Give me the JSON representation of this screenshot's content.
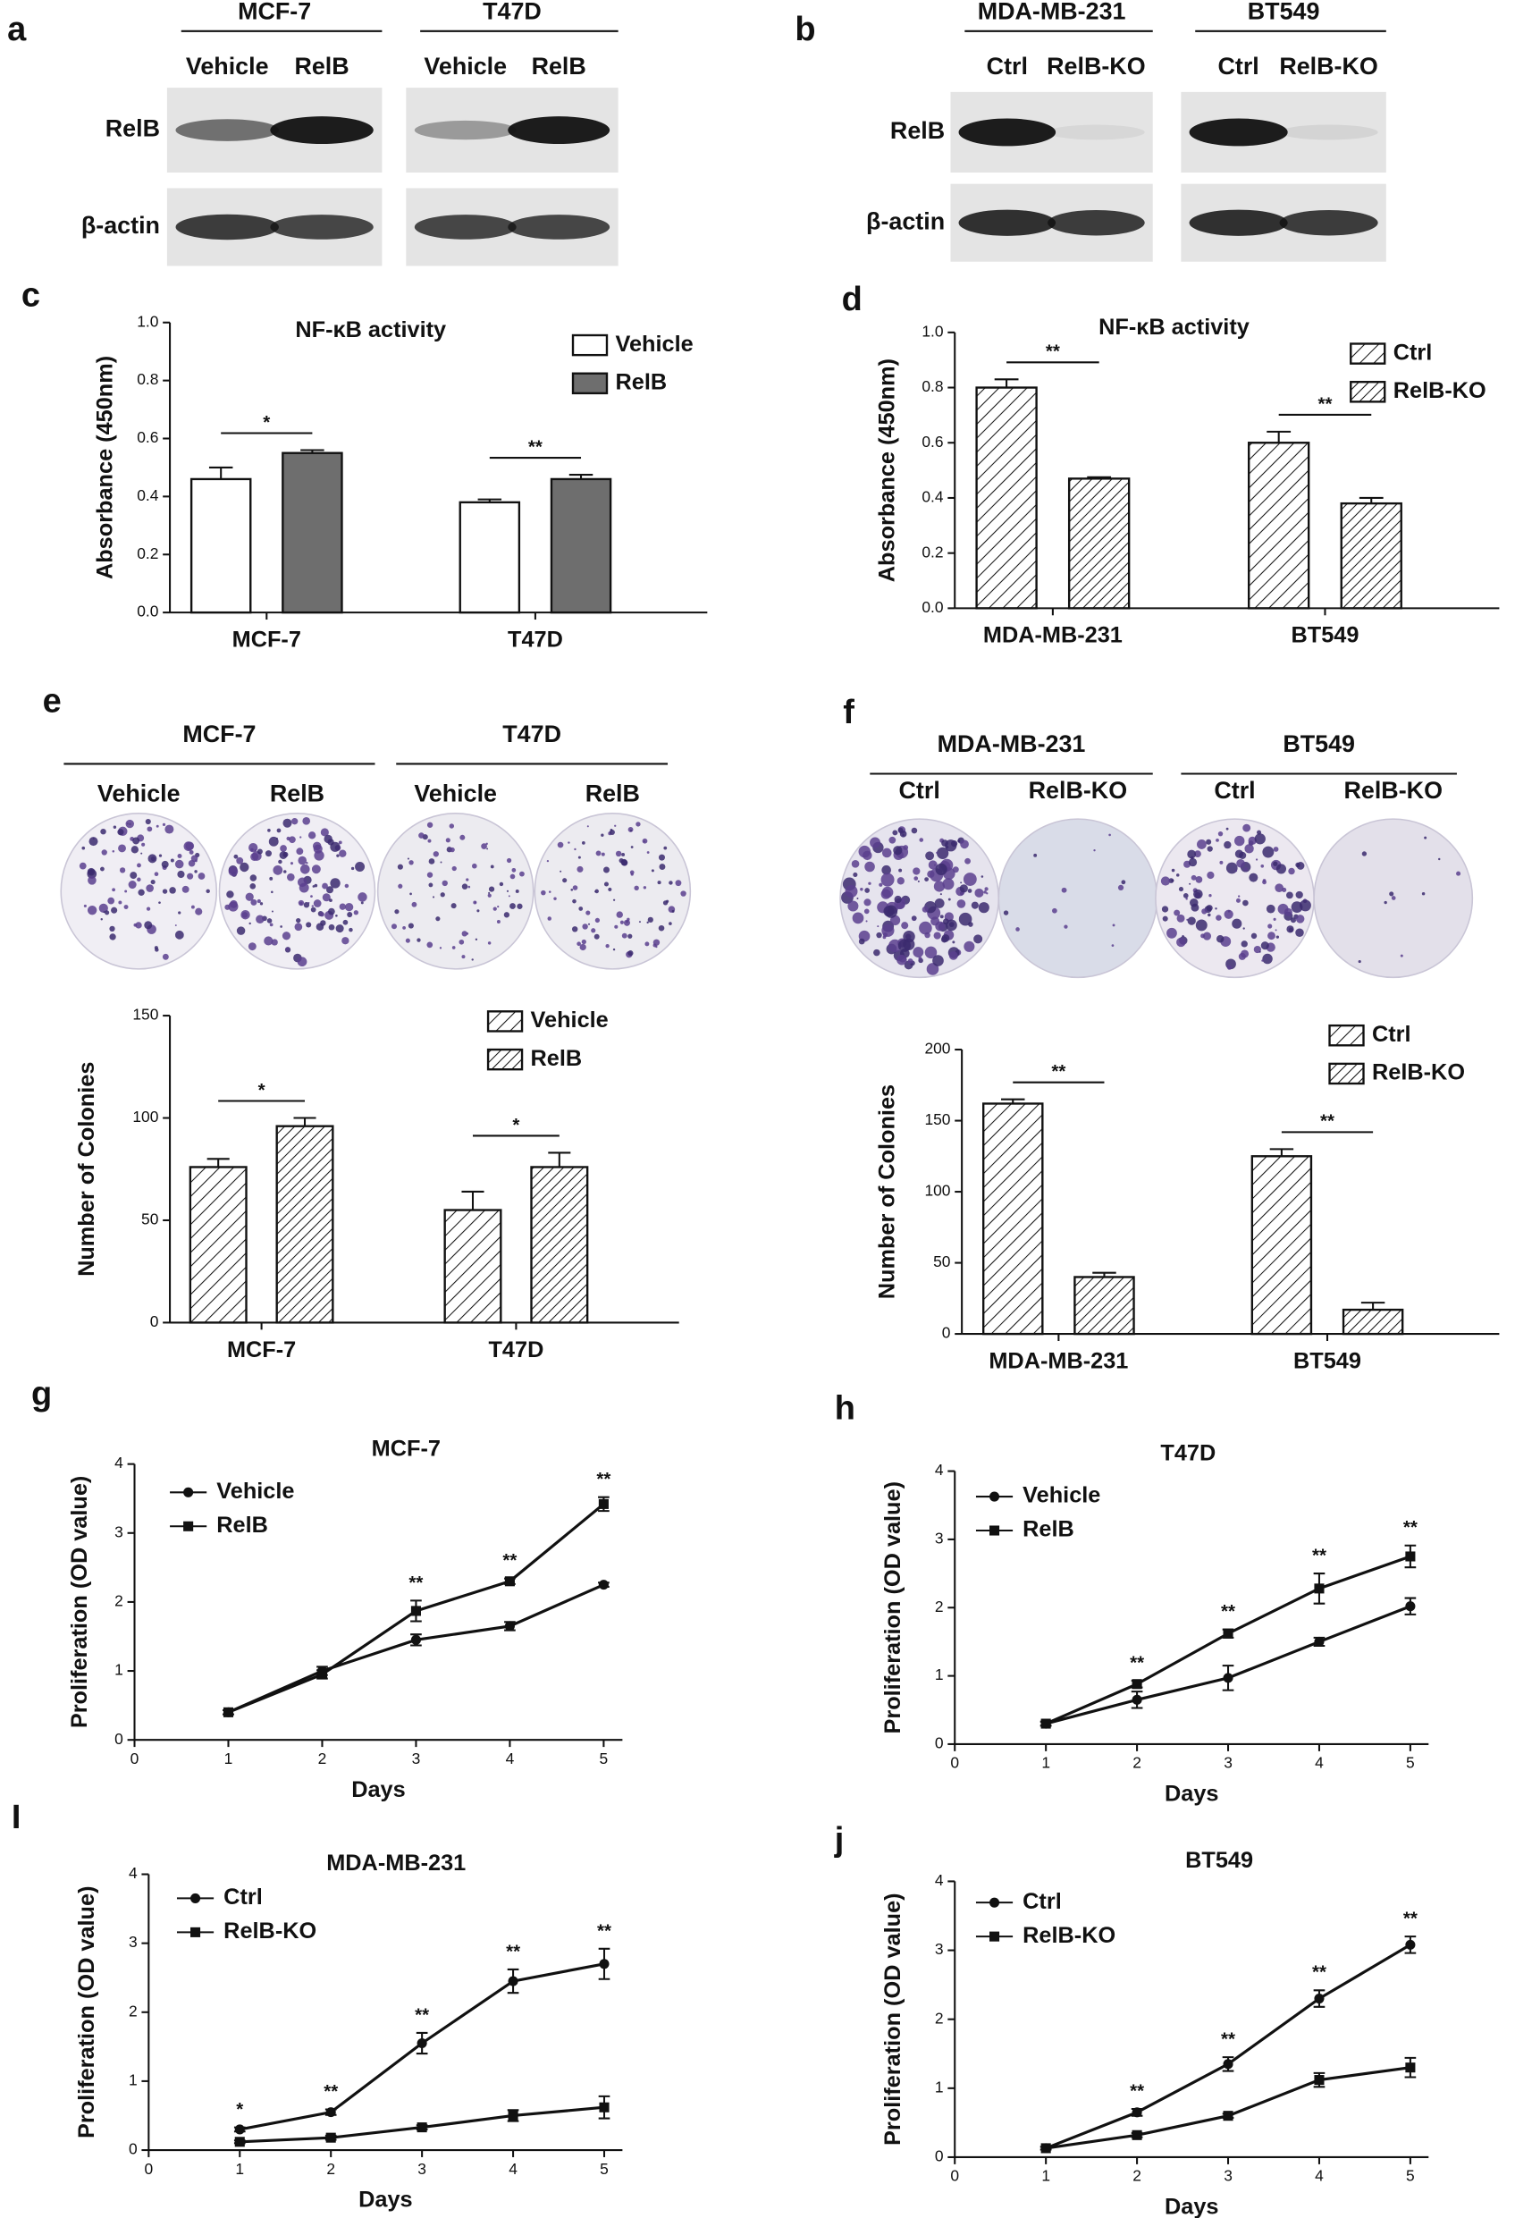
{
  "blots": [
    {
      "panel": "a",
      "groups": [
        {
          "name": "MCF-7",
          "lanes": [
            "Vehicle",
            "RelB"
          ]
        },
        {
          "name": "T47D",
          "lanes": [
            "Vehicle",
            "RelB"
          ]
        }
      ],
      "rows": [
        "RelB",
        "β-actin"
      ]
    },
    {
      "panel": "b",
      "groups": [
        {
          "name": "MDA-MB-231",
          "lanes": [
            "Ctrl",
            "RelB-KO"
          ]
        },
        {
          "name": "BT549",
          "lanes": [
            "Ctrl",
            "RelB-KO"
          ]
        }
      ],
      "rows": [
        "RelB",
        "β-actin"
      ]
    }
  ],
  "colonies": [
    {
      "panel": "e",
      "groups": [
        {
          "name": "MCF-7",
          "lanes": [
            "Vehicle",
            "RelB"
          ]
        },
        {
          "name": "T47D",
          "lanes": [
            "Vehicle",
            "RelB"
          ]
        }
      ]
    },
    {
      "panel": "f",
      "groups": [
        {
          "name": "MDA-MB-231",
          "lanes": [
            "Ctrl",
            "RelB-KO"
          ]
        },
        {
          "name": "BT549",
          "lanes": [
            "Ctrl",
            "RelB-KO"
          ]
        }
      ]
    }
  ],
  "chart_data": [
    {
      "type": "bar",
      "panel": "c",
      "title": "NF-κB activity",
      "ylabel": "Absorbance (450nm)",
      "categories": [
        "MCF-7",
        "T47D"
      ],
      "series": [
        {
          "name": "Vehicle",
          "color": "#ffffff",
          "values": [
            0.46,
            0.38
          ],
          "errors": [
            0.04,
            0.01
          ]
        },
        {
          "name": "RelB",
          "color": "#6e6e6e",
          "values": [
            0.55,
            0.46
          ],
          "errors": [
            0.01,
            0.015
          ]
        }
      ],
      "hatch": false,
      "ylim": [
        0,
        1
      ],
      "yticks": [
        {
          "value": 0,
          "label": "0.0"
        },
        0.2,
        0.4,
        0.6,
        0.8,
        {
          "value": 1,
          "label": "1.0"
        }
      ],
      "annotations": [
        {
          "text": "*",
          "category": 0
        },
        {
          "text": "**",
          "category": 1
        }
      ],
      "legend": "upper right"
    },
    {
      "type": "bar",
      "panel": "d",
      "title": "NF-κB activity",
      "ylabel": "Absorbance (450nm)",
      "categories": [
        "MDA-MB-231",
        "BT549"
      ],
      "series": [
        {
          "name": "Ctrl",
          "color": "#b5b5b5",
          "values": [
            0.8,
            0.6
          ],
          "errors": [
            0.03,
            0.04
          ]
        },
        {
          "name": "RelB-KO",
          "color": "#555555",
          "values": [
            0.47,
            0.38
          ],
          "errors": [
            0.005,
            0.02
          ]
        }
      ],
      "hatch": true,
      "ylim": [
        0,
        1
      ],
      "yticks": [
        {
          "value": 0,
          "label": "0.0"
        },
        0.2,
        0.4,
        0.6,
        0.8,
        {
          "value": 1,
          "label": "1.0"
        }
      ],
      "annotations": [
        {
          "text": "**",
          "category": 0
        },
        {
          "text": "**",
          "category": 1
        }
      ],
      "legend": "upper right"
    },
    {
      "type": "bar",
      "ylabel": "Number of Colonies",
      "categories": [
        "MCF-7",
        "T47D"
      ],
      "series": [
        {
          "name": "Vehicle",
          "color": "#444444",
          "values": [
            76,
            55
          ],
          "errors": [
            4,
            9
          ]
        },
        {
          "name": "RelB",
          "color": "#111111",
          "values": [
            96,
            76
          ],
          "errors": [
            4,
            7
          ]
        }
      ],
      "hatch": true,
      "ylim": [
        0,
        150
      ],
      "yticks": [
        0,
        50,
        100,
        150
      ],
      "annotations": [
        {
          "text": "*",
          "category": 0
        },
        {
          "text": "*",
          "category": 1
        }
      ],
      "legend": "upper right"
    },
    {
      "type": "bar",
      "ylabel": "Number of Colonies",
      "categories": [
        "MDA-MB-231",
        "BT549"
      ],
      "series": [
        {
          "name": "Ctrl",
          "color": "#444444",
          "values": [
            162,
            125
          ],
          "errors": [
            3,
            5
          ]
        },
        {
          "name": "RelB-KO",
          "color": "#111111",
          "values": [
            40,
            17
          ],
          "errors": [
            3,
            5
          ]
        }
      ],
      "hatch": true,
      "ylim": [
        0,
        200
      ],
      "yticks": [
        0,
        50,
        100,
        150,
        200
      ],
      "annotations": [
        {
          "text": "**",
          "category": 0
        },
        {
          "text": "**",
          "category": 1
        }
      ],
      "legend": "upper right"
    },
    {
      "type": "line",
      "panel": "g",
      "title": "MCF-7",
      "xlabel": "Days",
      "ylabel": "Proliferation (OD value)",
      "x": [
        1,
        2,
        3,
        4,
        5
      ],
      "series": [
        {
          "name": "Vehicle",
          "color": "#111111",
          "values": [
            0.4,
            1.0,
            1.45,
            1.65,
            2.25
          ],
          "errors": [
            0.03,
            0.06,
            0.08,
            0.06,
            0.03
          ]
        },
        {
          "name": "RelB",
          "color": "#111111",
          "values": [
            0.4,
            0.95,
            1.87,
            2.3,
            3.42
          ],
          "errors": [
            0.03,
            0.06,
            0.15,
            0.04,
            0.1
          ]
        }
      ],
      "xlim": [
        0,
        5.2
      ],
      "xticks": [
        0,
        1,
        2,
        3,
        4,
        5
      ],
      "ylim": [
        0,
        4
      ],
      "yticks": [
        0,
        1,
        2,
        3,
        4
      ],
      "annotations": [
        {
          "text": "**",
          "x": 3
        },
        {
          "text": "**",
          "x": 4
        },
        {
          "text": "**",
          "x": 5
        }
      ],
      "legend": "upper left"
    },
    {
      "type": "line",
      "panel": "h",
      "title": "T47D",
      "xlabel": "Days",
      "ylabel": "Proliferation (OD value)",
      "x": [
        1,
        2,
        3,
        4,
        5
      ],
      "series": [
        {
          "name": "Vehicle",
          "color": "#111111",
          "values": [
            0.3,
            0.65,
            0.97,
            1.5,
            2.02
          ],
          "errors": [
            0.03,
            0.12,
            0.18,
            0.06,
            0.12
          ]
        },
        {
          "name": "RelB",
          "color": "#111111",
          "values": [
            0.3,
            0.88,
            1.62,
            2.28,
            2.75
          ],
          "errors": [
            0.03,
            0.05,
            0.06,
            0.22,
            0.16
          ]
        }
      ],
      "xlim": [
        0,
        5.2
      ],
      "xticks": [
        0,
        1,
        2,
        3,
        4,
        5
      ],
      "ylim": [
        0,
        4
      ],
      "yticks": [
        0,
        1,
        2,
        3,
        4
      ],
      "annotations": [
        {
          "text": "**",
          "x": 2
        },
        {
          "text": "**",
          "x": 3
        },
        {
          "text": "**",
          "x": 4
        },
        {
          "text": "**",
          "x": 5
        }
      ],
      "legend": "upper left"
    },
    {
      "type": "line",
      "panel": "I",
      "title": "MDA-MB-231",
      "xlabel": "Days",
      "ylabel": "Proliferation (OD value)",
      "x": [
        1,
        2,
        3,
        4,
        5
      ],
      "series": [
        {
          "name": "Ctrl",
          "color": "#111111",
          "values": [
            0.3,
            0.55,
            1.55,
            2.45,
            2.7
          ],
          "errors": [
            0.03,
            0.04,
            0.15,
            0.17,
            0.22
          ]
        },
        {
          "name": "RelB-KO",
          "color": "#111111",
          "values": [
            0.12,
            0.18,
            0.33,
            0.5,
            0.62
          ],
          "errors": [
            0.02,
            0.03,
            0.03,
            0.08,
            0.16
          ]
        }
      ],
      "xlim": [
        0,
        5.2
      ],
      "xticks": [
        0,
        1,
        2,
        3,
        4,
        5
      ],
      "ylim": [
        0,
        4
      ],
      "yticks": [
        0,
        1,
        2,
        3,
        4
      ],
      "annotations": [
        {
          "text": "*",
          "x": 1
        },
        {
          "text": "**",
          "x": 2
        },
        {
          "text": "**",
          "x": 3
        },
        {
          "text": "**",
          "x": 4
        },
        {
          "text": "**",
          "x": 5
        }
      ],
      "legend": "upper left"
    },
    {
      "type": "line",
      "panel": "j",
      "title": "BT549",
      "xlabel": "Days",
      "ylabel": "Proliferation (OD value)",
      "x": [
        1,
        2,
        3,
        4,
        5
      ],
      "series": [
        {
          "name": "Ctrl",
          "color": "#111111",
          "values": [
            0.13,
            0.65,
            1.35,
            2.3,
            3.08
          ],
          "errors": [
            0.02,
            0.05,
            0.1,
            0.12,
            0.12
          ]
        },
        {
          "name": "RelB-KO",
          "color": "#111111",
          "values": [
            0.13,
            0.32,
            0.6,
            1.12,
            1.3
          ],
          "errors": [
            0.02,
            0.03,
            0.03,
            0.1,
            0.14
          ]
        }
      ],
      "xlim": [
        0,
        5.2
      ],
      "xticks": [
        0,
        1,
        2,
        3,
        4,
        5
      ],
      "ylim": [
        0,
        4
      ],
      "yticks": [
        0,
        1,
        2,
        3,
        4
      ],
      "annotations": [
        {
          "text": "**",
          "x": 2
        },
        {
          "text": "**",
          "x": 3
        },
        {
          "text": "**",
          "x": 4
        },
        {
          "text": "**",
          "x": 5
        }
      ],
      "legend": "upper left"
    }
  ]
}
